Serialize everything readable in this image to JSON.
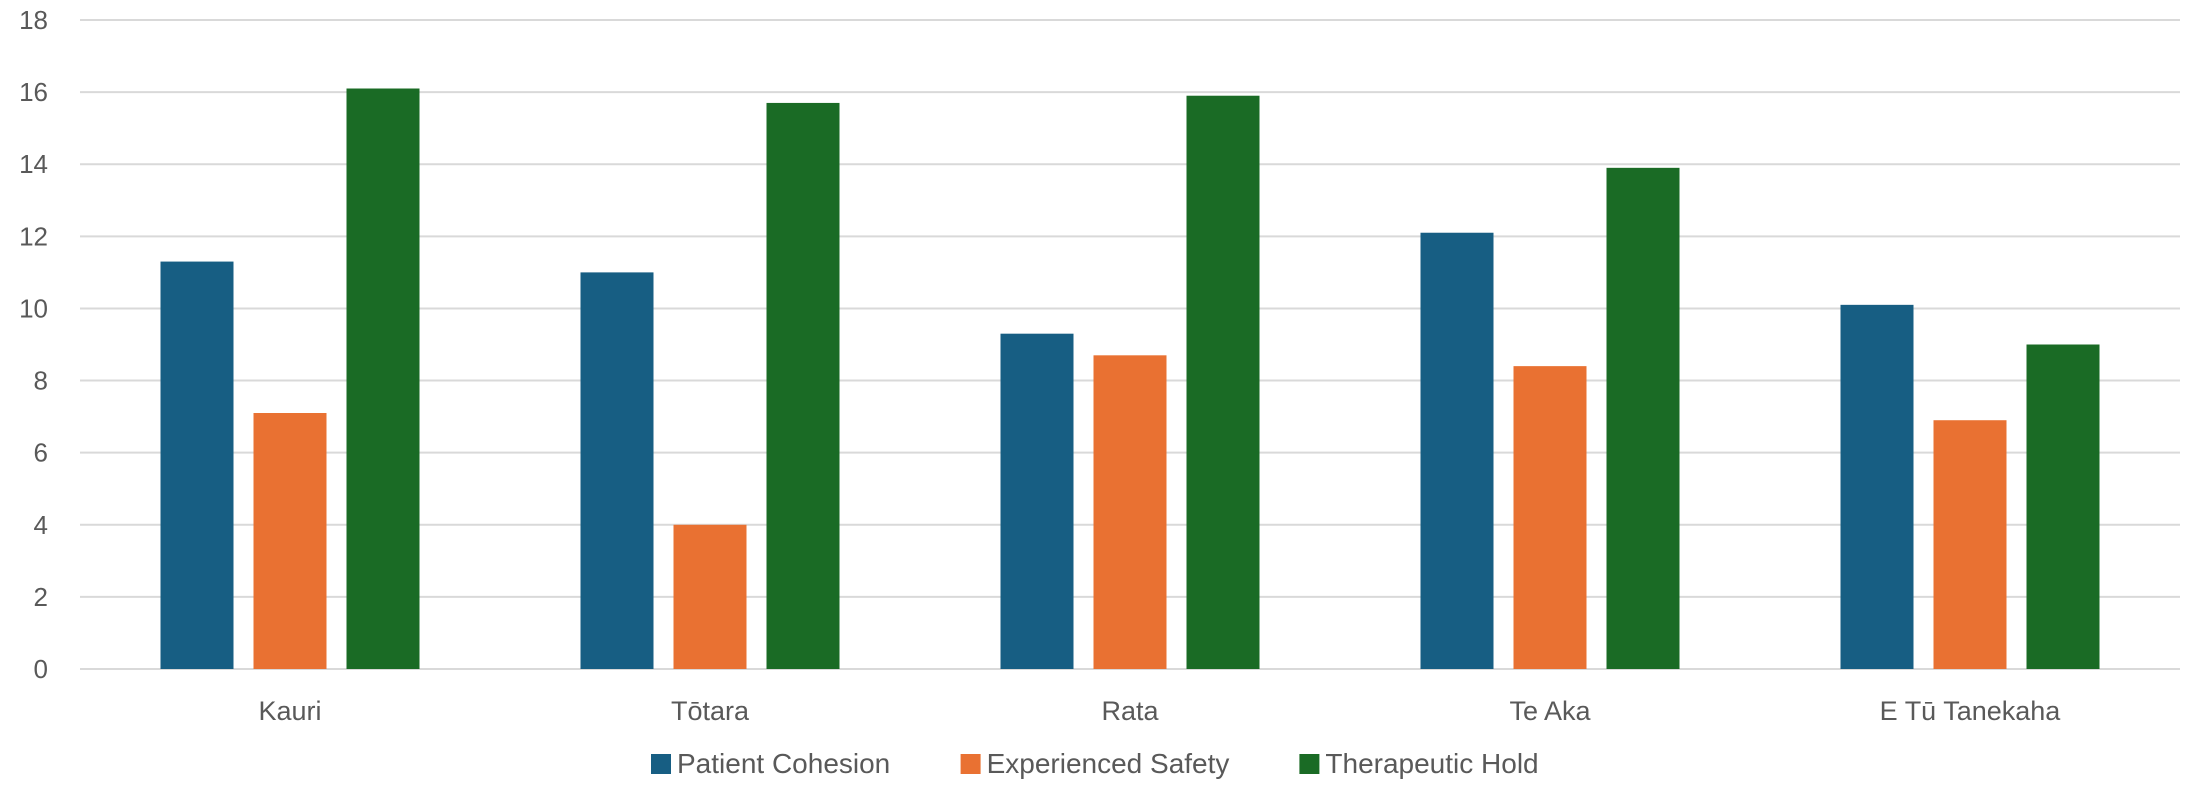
{
  "chart_data": {
    "type": "bar",
    "categories": [
      "Kauri",
      "Tōtara",
      "Rata",
      "Te Aka",
      "E Tū Tanekaha"
    ],
    "series": [
      {
        "name": "Patient Cohesion",
        "color": "#175E83",
        "values": [
          11.3,
          11.0,
          9.3,
          12.1,
          10.1
        ]
      },
      {
        "name": "Experienced Safety",
        "color": "#E97132",
        "values": [
          7.1,
          4.0,
          8.7,
          8.4,
          6.9
        ]
      },
      {
        "name": "Therapeutic Hold",
        "color": "#1A6B25",
        "values": [
          16.1,
          15.7,
          15.9,
          13.9,
          9.0
        ]
      }
    ],
    "ylim": [
      0,
      18
    ],
    "yticks": [
      "0",
      "2",
      "4",
      "6",
      "8",
      "10",
      "12",
      "14",
      "16",
      "18"
    ],
    "grid": true,
    "legend_position": "bottom",
    "title": "",
    "xlabel": "",
    "ylabel": ""
  }
}
